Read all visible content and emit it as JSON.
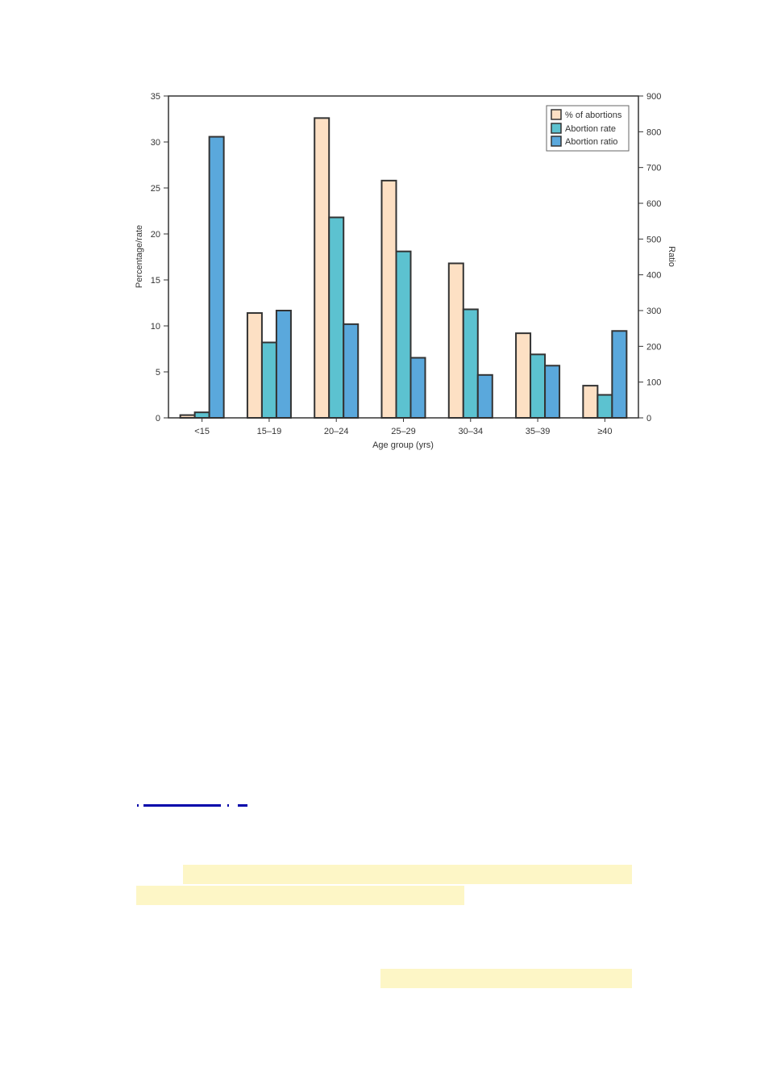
{
  "chart_data": {
    "type": "bar",
    "title": "",
    "xlabel": "Age group (yrs)",
    "ylabel": "Percentage/rate",
    "y2label": "Ratio",
    "categories": [
      "<15",
      "15–19",
      "20–24",
      "25–29",
      "30–34",
      "35–39",
      "≥40"
    ],
    "ylim": [
      0,
      35
    ],
    "yticks": [
      0,
      5,
      10,
      15,
      20,
      25,
      30,
      35
    ],
    "y2lim": [
      0,
      900
    ],
    "y2ticks": [
      0,
      100,
      200,
      300,
      400,
      500,
      600,
      700,
      800,
      900
    ],
    "grid": false,
    "legend_position": "top-right",
    "series": [
      {
        "name": "% of abortions",
        "axis": "left",
        "color": "#fde0c4",
        "values": [
          0.3,
          11.4,
          32.6,
          25.8,
          16.8,
          9.2,
          3.5
        ]
      },
      {
        "name": "Abortion rate",
        "axis": "left",
        "color": "#5cc2d0",
        "values": [
          0.6,
          8.2,
          21.8,
          18.1,
          11.8,
          6.9,
          2.5
        ]
      },
      {
        "name": "Abortion ratio",
        "axis": "right",
        "color": "#5aa8dc",
        "values": [
          786,
          300,
          262,
          168,
          120,
          146,
          243
        ]
      }
    ]
  },
  "decor": {
    "link_color": "#0000aa",
    "highlight_color": "#fdf6c6"
  }
}
